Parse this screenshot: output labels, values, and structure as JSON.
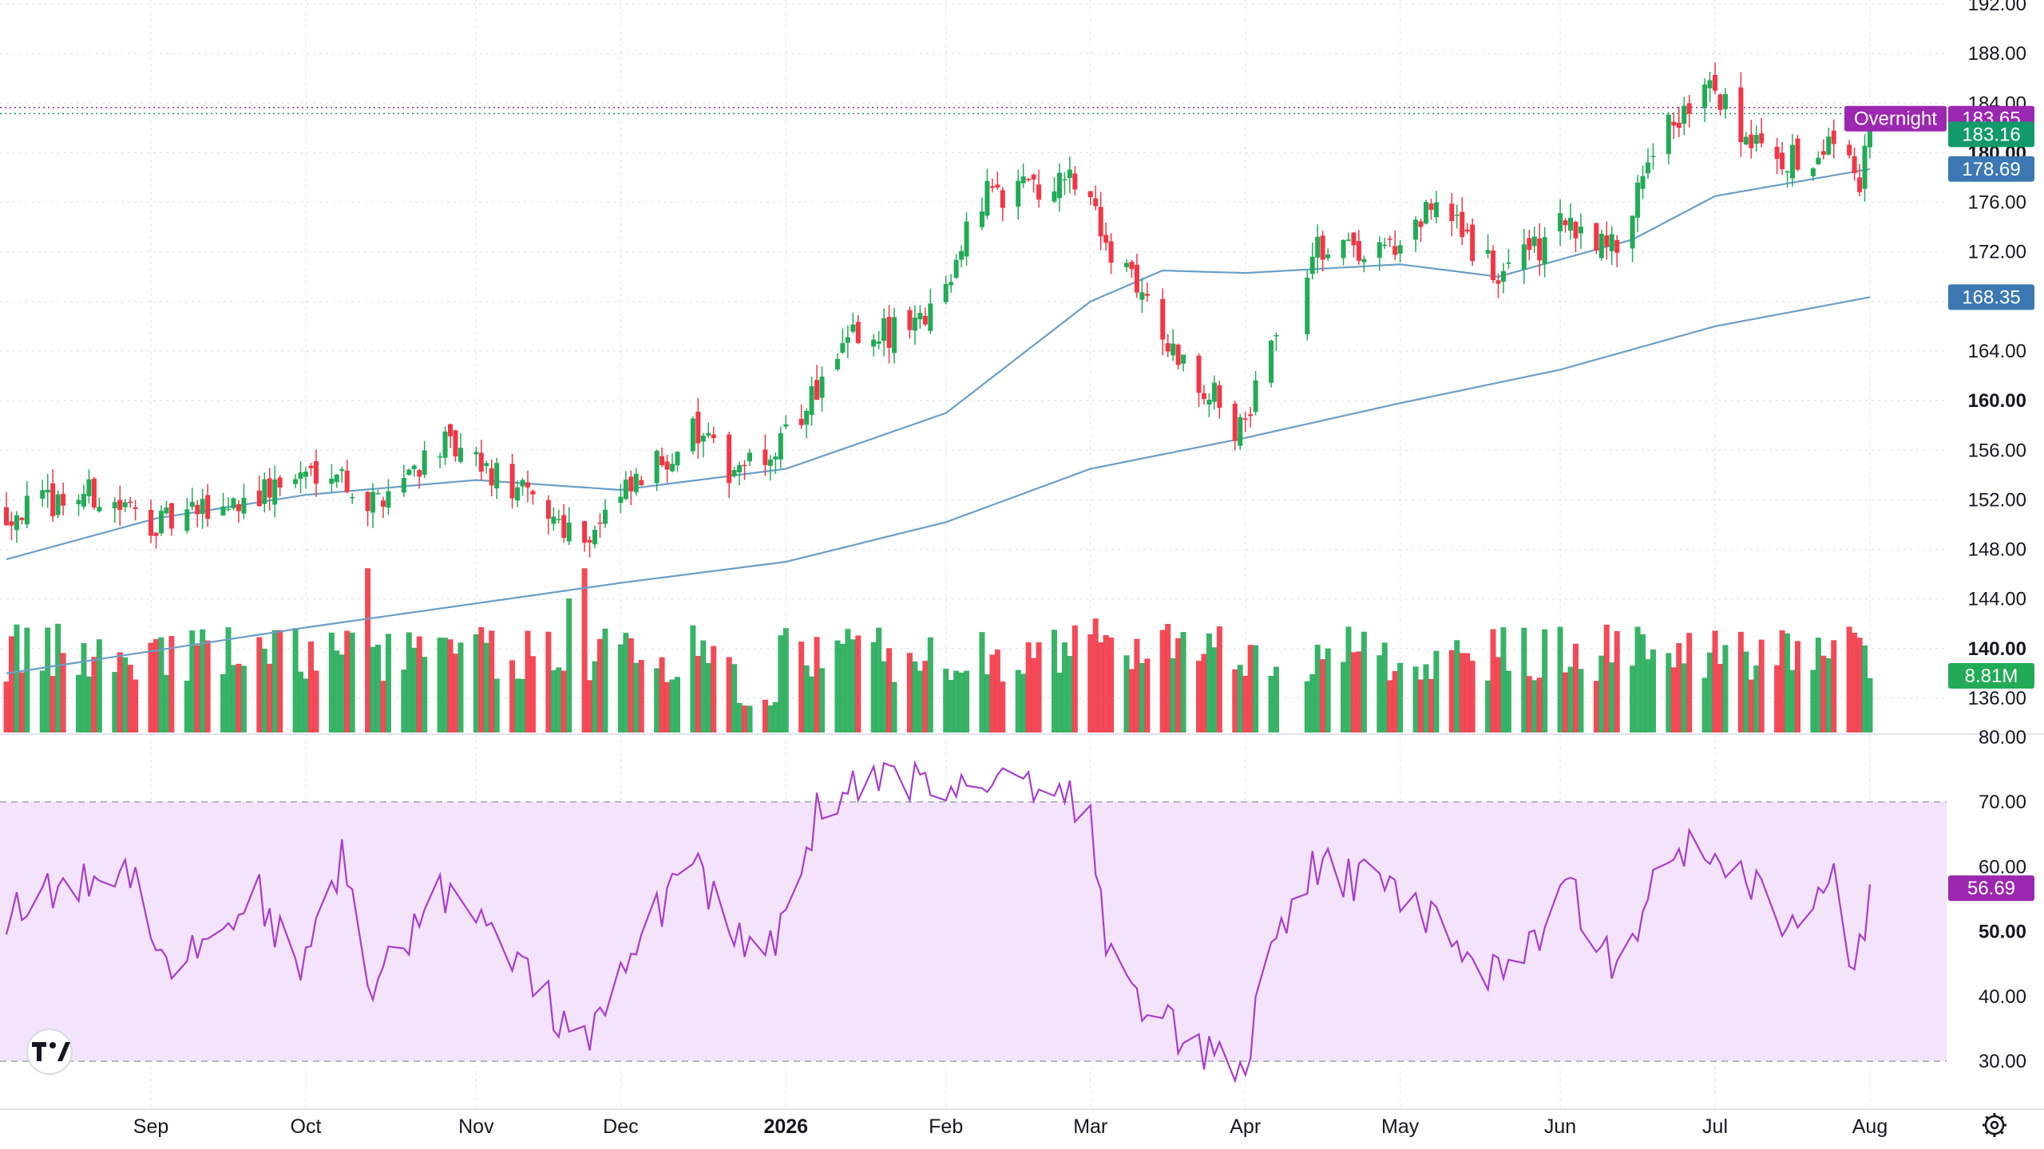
{
  "colors": {
    "up": "#22ab57",
    "down": "#f23645",
    "ma_line": "#6a9ec8",
    "rsi_line": "#a93ccf",
    "rsi_band": "#f3e4fb",
    "price_badge": "#139a6a",
    "overnight_badge": "#9c27b0",
    "ma_badge": "#3c78b4",
    "volume_badge": "#22ab57",
    "rsi_badge": "#9c27b0",
    "grid": "#e6e8ee"
  },
  "logo_icon": "tradingview-logo",
  "settings_icon": "gear-icon",
  "price_axis": {
    "labels": [
      "192.00",
      "188.00",
      "184.00",
      "180.00",
      "176.00",
      "172.00",
      "168.00",
      "164.00",
      "160.00",
      "156.00",
      "152.00",
      "148.00",
      "144.00",
      "140.00",
      "136.00"
    ],
    "bold_labels": [
      "180.00",
      "160.00",
      "140.00"
    ]
  },
  "rsi_axis": {
    "labels": [
      "80.00",
      "70.00",
      "60.00",
      "50.00",
      "40.00",
      "30.00"
    ],
    "bold_labels": [
      "50.00"
    ]
  },
  "time_axis": {
    "labels": [
      "Sep",
      "Oct",
      "Nov",
      "Dec",
      "2026",
      "Feb",
      "Mar",
      "Apr",
      "May",
      "Jun",
      "Jul",
      "Aug"
    ],
    "bold_labels": [
      "2026"
    ]
  },
  "badges": {
    "overnight_label": "Overnight",
    "overnight_price": "183.65",
    "last_price": "183.16",
    "ma50": "178.69",
    "ma200": "168.35",
    "volume": "8.81M",
    "rsi": "56.69"
  },
  "chart_data": {
    "type": "candlestick",
    "x_axis": "date",
    "x_start": "2025-08-04",
    "x_end": "2026-07-31",
    "y_range_price": [
      135,
      192
    ],
    "ohlc_anchors": [
      {
        "date": "2025-08-04",
        "close": 151.0
      },
      {
        "date": "2025-08-20",
        "close": 152.5
      },
      {
        "date": "2025-09-03",
        "close": 150.0
      },
      {
        "date": "2025-09-22",
        "close": 152.5
      },
      {
        "date": "2025-10-06",
        "close": 155.0
      },
      {
        "date": "2025-10-13",
        "close": 151.5
      },
      {
        "date": "2025-10-27",
        "close": 156.5
      },
      {
        "date": "2025-11-10",
        "close": 153.0
      },
      {
        "date": "2025-11-24",
        "close": 149.0
      },
      {
        "date": "2025-12-01",
        "close": 152.0
      },
      {
        "date": "2025-12-15",
        "close": 157.5
      },
      {
        "date": "2025-12-22",
        "close": 154.5
      },
      {
        "date": "2026-01-02",
        "close": 157.0
      },
      {
        "date": "2026-01-15",
        "close": 165.0
      },
      {
        "date": "2026-01-28",
        "close": 166.0
      },
      {
        "date": "2026-02-10",
        "close": 176.5
      },
      {
        "date": "2026-02-27",
        "close": 178.0
      },
      {
        "date": "2026-03-09",
        "close": 170.0
      },
      {
        "date": "2026-03-18",
        "close": 164.5
      },
      {
        "date": "2026-03-31",
        "close": 157.5
      },
      {
        "date": "2026-04-06",
        "close": 164.0
      },
      {
        "date": "2026-04-14",
        "close": 172.0
      },
      {
        "date": "2026-05-01",
        "close": 172.5
      },
      {
        "date": "2026-05-08",
        "close": 176.0
      },
      {
        "date": "2026-05-20",
        "close": 170.0
      },
      {
        "date": "2026-06-03",
        "close": 174.5
      },
      {
        "date": "2026-06-12",
        "close": 172.0
      },
      {
        "date": "2026-06-19",
        "close": 181.0
      },
      {
        "date": "2026-06-30",
        "close": 185.0
      },
      {
        "date": "2026-07-10",
        "close": 180.0
      },
      {
        "date": "2026-07-20",
        "close": 179.0
      },
      {
        "date": "2026-07-24",
        "close": 181.5
      },
      {
        "date": "2026-07-29",
        "close": 178.0
      },
      {
        "date": "2026-07-31",
        "close": 183.16
      }
    ],
    "gaps": [
      {
        "from": "2026-04-08",
        "to": "2026-04-12"
      }
    ],
    "ma_fast": [
      {
        "date": "2025-08-04",
        "value": 147.2
      },
      {
        "date": "2025-09-02",
        "value": 150.5
      },
      {
        "date": "2025-10-01",
        "value": 152.4
      },
      {
        "date": "2025-11-03",
        "value": 153.6
      },
      {
        "date": "2025-12-01",
        "value": 152.8
      },
      {
        "date": "2026-01-02",
        "value": 154.5
      },
      {
        "date": "2026-02-02",
        "value": 159.0
      },
      {
        "date": "2026-03-02",
        "value": 168.0
      },
      {
        "date": "2026-03-16",
        "value": 170.5
      },
      {
        "date": "2026-04-01",
        "value": 170.3
      },
      {
        "date": "2026-05-01",
        "value": 171.0
      },
      {
        "date": "2026-05-20",
        "value": 170.0
      },
      {
        "date": "2026-06-15",
        "value": 173.0
      },
      {
        "date": "2026-07-01",
        "value": 176.5
      },
      {
        "date": "2026-07-31",
        "value": 178.69
      }
    ],
    "ma_slow": [
      {
        "date": "2025-08-04",
        "value": 138.0
      },
      {
        "date": "2025-10-01",
        "value": 141.7
      },
      {
        "date": "2025-12-01",
        "value": 145.3
      },
      {
        "date": "2026-01-02",
        "value": 147.0
      },
      {
        "date": "2026-02-02",
        "value": 150.2
      },
      {
        "date": "2026-03-02",
        "value": 154.5
      },
      {
        "date": "2026-04-01",
        "value": 157.0
      },
      {
        "date": "2026-05-01",
        "value": 159.8
      },
      {
        "date": "2026-06-01",
        "value": 162.5
      },
      {
        "date": "2026-07-01",
        "value": 166.0
      },
      {
        "date": "2026-07-31",
        "value": 168.35
      }
    ],
    "volume": {
      "unit": "M",
      "last_value": 8.81,
      "note_values_relative": "typical 8–12M, spikes near 2025-10-13, 2025-11-24, 2026-03-02"
    },
    "rsi": {
      "range": [
        25,
        80
      ],
      "upper_band": 70,
      "lower_band": 30,
      "last_value": 56.69,
      "series": [
        {
          "date": "2025-08-04",
          "value": 53
        },
        {
          "date": "2025-08-20",
          "value": 58
        },
        {
          "date": "2025-08-28",
          "value": 60
        },
        {
          "date": "2025-09-05",
          "value": 44
        },
        {
          "date": "2025-09-22",
          "value": 56
        },
        {
          "date": "2025-09-30",
          "value": 42
        },
        {
          "date": "2025-10-08",
          "value": 62
        },
        {
          "date": "2025-10-13",
          "value": 40
        },
        {
          "date": "2025-10-27",
          "value": 57
        },
        {
          "date": "2025-11-10",
          "value": 46
        },
        {
          "date": "2025-11-24",
          "value": 32
        },
        {
          "date": "2025-12-15",
          "value": 63
        },
        {
          "date": "2025-12-22",
          "value": 48
        },
        {
          "date": "2026-01-02",
          "value": 50
        },
        {
          "date": "2026-01-08",
          "value": 69
        },
        {
          "date": "2026-01-20",
          "value": 73
        },
        {
          "date": "2026-02-06",
          "value": 73
        },
        {
          "date": "2026-02-18",
          "value": 74
        },
        {
          "date": "2026-03-02",
          "value": 69
        },
        {
          "date": "2026-03-05",
          "value": 46
        },
        {
          "date": "2026-03-16",
          "value": 36
        },
        {
          "date": "2026-03-31",
          "value": 28
        },
        {
          "date": "2026-04-06",
          "value": 45
        },
        {
          "date": "2026-04-14",
          "value": 60
        },
        {
          "date": "2026-05-01",
          "value": 56
        },
        {
          "date": "2026-05-20",
          "value": 43
        },
        {
          "date": "2026-06-03",
          "value": 56
        },
        {
          "date": "2026-06-12",
          "value": 44
        },
        {
          "date": "2026-06-22",
          "value": 64
        },
        {
          "date": "2026-07-06",
          "value": 60
        },
        {
          "date": "2026-07-17",
          "value": 49
        },
        {
          "date": "2026-07-24",
          "value": 58
        },
        {
          "date": "2026-07-28",
          "value": 42
        },
        {
          "date": "2026-07-31",
          "value": 56.69
        }
      ]
    }
  }
}
